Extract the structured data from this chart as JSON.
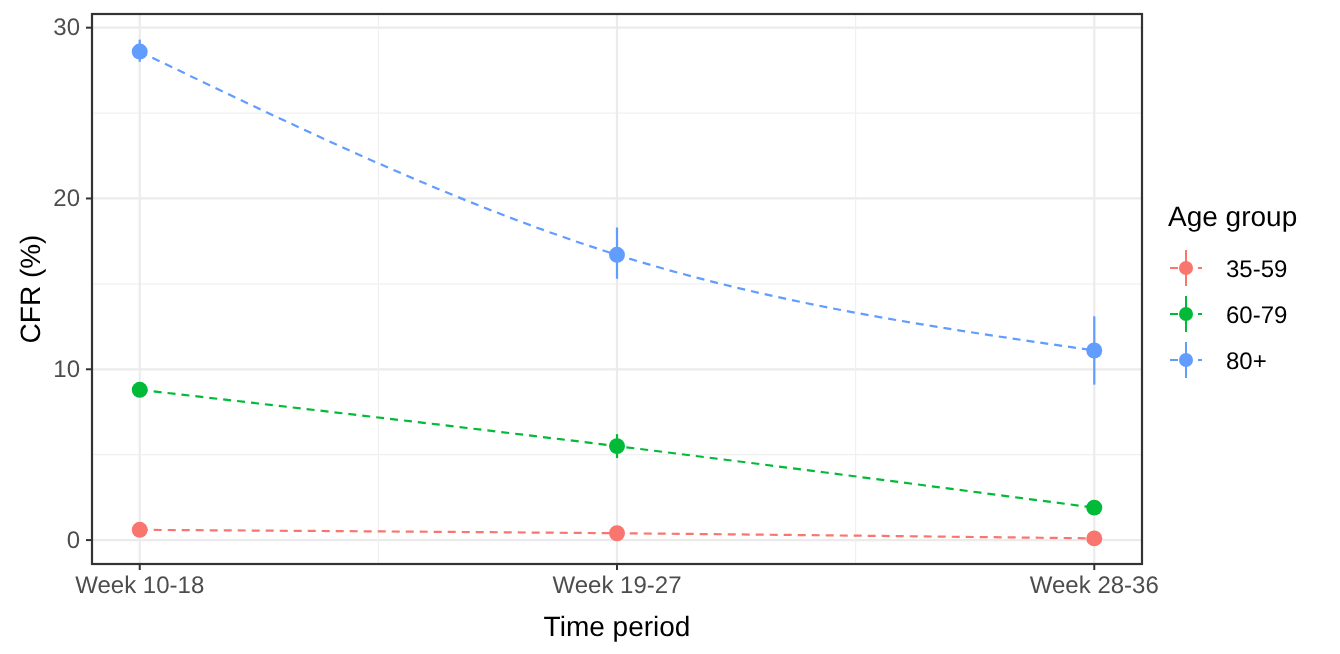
{
  "chart_data": {
    "type": "line",
    "xlabel": "Time period",
    "ylabel": "CFR (%)",
    "legend_title": "Age group",
    "categories": [
      "Week 10-18",
      "Week 19-27",
      "Week 28-36"
    ],
    "series": [
      {
        "name": "35-59",
        "color": "#f8766d",
        "values": [
          0.6,
          0.4,
          0.1
        ],
        "errors": [
          [
            0.4,
            0.8
          ],
          [
            0.3,
            0.5
          ],
          [
            0.0,
            0.2
          ]
        ]
      },
      {
        "name": "60-79",
        "color": "#00ba38",
        "values": [
          8.8,
          5.5,
          1.9
        ],
        "errors": [
          [
            8.4,
            9.2
          ],
          [
            4.8,
            6.2
          ],
          [
            1.6,
            2.2
          ]
        ]
      },
      {
        "name": "80+",
        "color": "#619cff",
        "values": [
          28.6,
          16.7,
          11.1
        ],
        "errors": [
          [
            28.0,
            29.3
          ],
          [
            15.3,
            18.3
          ],
          [
            9.1,
            13.1
          ]
        ]
      }
    ],
    "ylim": [
      -1.4,
      30.8
    ],
    "yticks": [
      0,
      10,
      20,
      30
    ],
    "grid": true,
    "legend": "right",
    "marker": "circle",
    "line_style": "dashed"
  }
}
